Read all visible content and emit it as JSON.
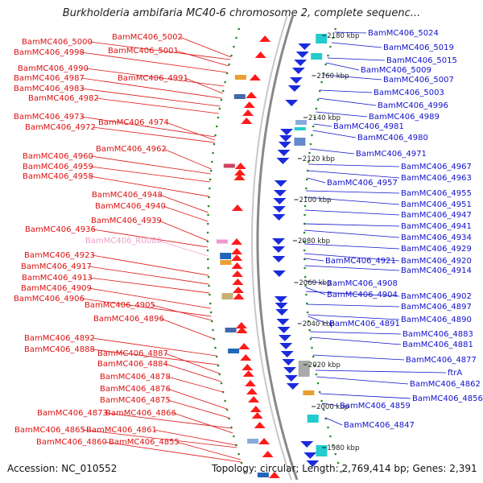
{
  "title": "Burkholderia ambifaria MC40-6 chromosome 2, complete sequenc...",
  "footer": {
    "accession": "Accession: NC_010552",
    "summary": "Topology: circular; Length: 2,769,414 bp; Genes: 2,391"
  },
  "colors": {
    "left_label": "#dd1111",
    "right_label": "#1111cc",
    "rna_label": "#f0a0c8",
    "forward_gene": "#ff1a1a",
    "reverse_gene": "#1a2bdd",
    "backbone": "#888888",
    "ruler_dots": "#2a8a2a"
  },
  "ticks": [
    "2180 kbp",
    "2160 kbp",
    "2140 kbp",
    "2120 kbp",
    "2100 kbp",
    "2080 kbp",
    "2060 kbp",
    "2040 kbp",
    "2020 kbp",
    "2000 kbp",
    "1980 kbp"
  ],
  "left_labels": [
    {
      "text": "BamMC406_5002",
      "kind": "gene"
    },
    {
      "text": "BamMC406_5000",
      "kind": "gene"
    },
    {
      "text": "BamMC406_5001",
      "kind": "gene"
    },
    {
      "text": "BamMC406_4998",
      "kind": "gene"
    },
    {
      "text": "BamMC406_4990",
      "kind": "gene"
    },
    {
      "text": "BamMC406_4991",
      "kind": "gene"
    },
    {
      "text": "BamMC406_4987",
      "kind": "gene"
    },
    {
      "text": "BamMC406_4983",
      "kind": "gene"
    },
    {
      "text": "BamMC406_4982",
      "kind": "gene"
    },
    {
      "text": "BamMC406_4973",
      "kind": "gene"
    },
    {
      "text": "BamMC406_4974",
      "kind": "gene"
    },
    {
      "text": "BamMC406_4972",
      "kind": "gene"
    },
    {
      "text": "BamMC406_4962",
      "kind": "gene"
    },
    {
      "text": "BamMC406_4960",
      "kind": "gene"
    },
    {
      "text": "BamMC406_4959",
      "kind": "gene"
    },
    {
      "text": "BamMC406_4958",
      "kind": "gene"
    },
    {
      "text": "BamMC406_4948",
      "kind": "gene"
    },
    {
      "text": "BamMC406_4940",
      "kind": "gene"
    },
    {
      "text": "BamMC406_4939",
      "kind": "gene"
    },
    {
      "text": "BamMC406_4936",
      "kind": "gene"
    },
    {
      "text": "BamMC406_R0080",
      "kind": "rna"
    },
    {
      "text": "BamMC406_4923",
      "kind": "gene"
    },
    {
      "text": "BamMC406_4917",
      "kind": "gene"
    },
    {
      "text": "BamMC406_4913",
      "kind": "gene"
    },
    {
      "text": "BamMC406_4909",
      "kind": "gene"
    },
    {
      "text": "BamMC406_4906",
      "kind": "gene"
    },
    {
      "text": "BamMC406_4905",
      "kind": "gene"
    },
    {
      "text": "BamMC406_4896",
      "kind": "gene"
    },
    {
      "text": "BamMC406_4892",
      "kind": "gene"
    },
    {
      "text": "BamMC406_4888",
      "kind": "gene"
    },
    {
      "text": "BamMC406_4887",
      "kind": "gene"
    },
    {
      "text": "BamMC406_4884",
      "kind": "gene"
    },
    {
      "text": "BamMC406_4878",
      "kind": "gene"
    },
    {
      "text": "BamMC406_4876",
      "kind": "gene"
    },
    {
      "text": "BamMC406_4875",
      "kind": "gene"
    },
    {
      "text": "BamMC406_4873",
      "kind": "gene"
    },
    {
      "text": "BamMC406_4866",
      "kind": "gene"
    },
    {
      "text": "BamMC406_4865",
      "kind": "gene"
    },
    {
      "text": "BamMC406_4861",
      "kind": "gene"
    },
    {
      "text": "BamMC406_4860",
      "kind": "gene"
    },
    {
      "text": "BamMC406_4855",
      "kind": "gene"
    }
  ],
  "right_labels": [
    {
      "text": "BamMC406_5024"
    },
    {
      "text": "BamMC406_5019"
    },
    {
      "text": "BamMC406_5015"
    },
    {
      "text": "BamMC406_5009"
    },
    {
      "text": "BamMC406_5007"
    },
    {
      "text": "BamMC406_5003"
    },
    {
      "text": "BamMC406_4996"
    },
    {
      "text": "BamMC406_4989"
    },
    {
      "text": "BamMC406_4981"
    },
    {
      "text": "BamMC406_4980"
    },
    {
      "text": "BamMC406_4971"
    },
    {
      "text": "BamMC406_4967"
    },
    {
      "text": "BamMC406_4963"
    },
    {
      "text": "BamMC406_4957"
    },
    {
      "text": "BamMC406_4955"
    },
    {
      "text": "BamMC406_4951"
    },
    {
      "text": "BamMC406_4947"
    },
    {
      "text": "BamMC406_4941"
    },
    {
      "text": "BamMC406_4934"
    },
    {
      "text": "BamMC406_4929"
    },
    {
      "text": "BamMC406_4921"
    },
    {
      "text": "BamMC406_4920"
    },
    {
      "text": "BamMC406_4914"
    },
    {
      "text": "BamMC406_4908"
    },
    {
      "text": "BamMC406_4904"
    },
    {
      "text": "BamMC406_4902"
    },
    {
      "text": "BamMC406_4897"
    },
    {
      "text": "BamMC406_4891"
    },
    {
      "text": "BamMC406_4890"
    },
    {
      "text": "BamMC406_4883"
    },
    {
      "text": "BamMC406_4881"
    },
    {
      "text": "BamMC406_4877"
    },
    {
      "text": "ftrA"
    },
    {
      "text": "BamMC406_4862"
    },
    {
      "text": "BamMC406_4856"
    },
    {
      "text": "BamMC406_4859"
    },
    {
      "text": "BamMC406_4847"
    }
  ]
}
